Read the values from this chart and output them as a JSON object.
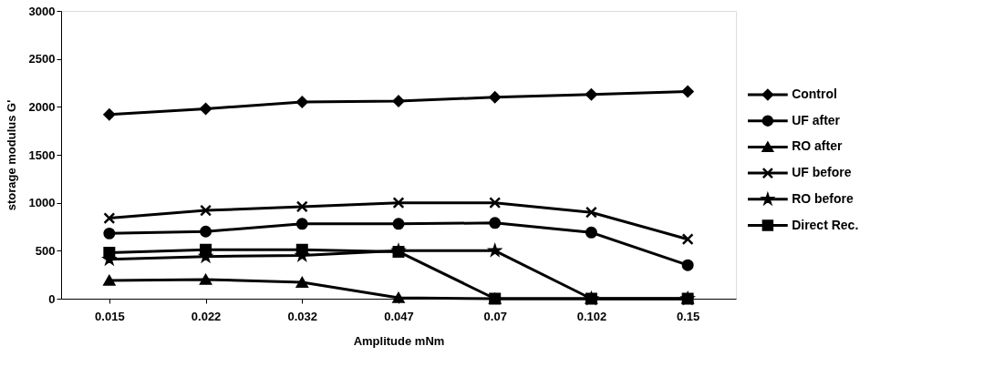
{
  "chart_data": {
    "type": "line",
    "xlabel": "Amplitude mNm",
    "ylabel": "storage modulus G'",
    "categories": [
      "0.015",
      "0.022",
      "0.032",
      "0.047",
      "0.07",
      "0.102",
      "0.15"
    ],
    "ylim": [
      0,
      3000
    ],
    "yticks": [
      0,
      500,
      1000,
      1500,
      2000,
      2500,
      3000
    ],
    "grid": false,
    "legend": "right",
    "line_style": "solid",
    "series": [
      {
        "name": "Control",
        "color": "#000000",
        "marker": "diamond",
        "values": [
          1920,
          1980,
          2050,
          2060,
          2100,
          2130,
          2160
        ]
      },
      {
        "name": "UF after",
        "color": "#000000",
        "marker": "circle",
        "values": [
          680,
          700,
          780,
          780,
          790,
          690,
          350
        ]
      },
      {
        "name": "RO after",
        "color": "#000000",
        "marker": "triangle",
        "values": [
          190,
          200,
          170,
          10,
          0,
          0,
          0
        ]
      },
      {
        "name": "UF before",
        "color": "#000000",
        "marker": "cross",
        "values": [
          840,
          920,
          960,
          1000,
          1000,
          900,
          620
        ]
      },
      {
        "name": "RO before",
        "color": "#000000",
        "marker": "star",
        "values": [
          410,
          440,
          450,
          500,
          500,
          0,
          0
        ]
      },
      {
        "name": "Direct Rec.",
        "color": "#000000",
        "marker": "square",
        "values": [
          480,
          510,
          510,
          490,
          0,
          0,
          0
        ]
      }
    ]
  }
}
